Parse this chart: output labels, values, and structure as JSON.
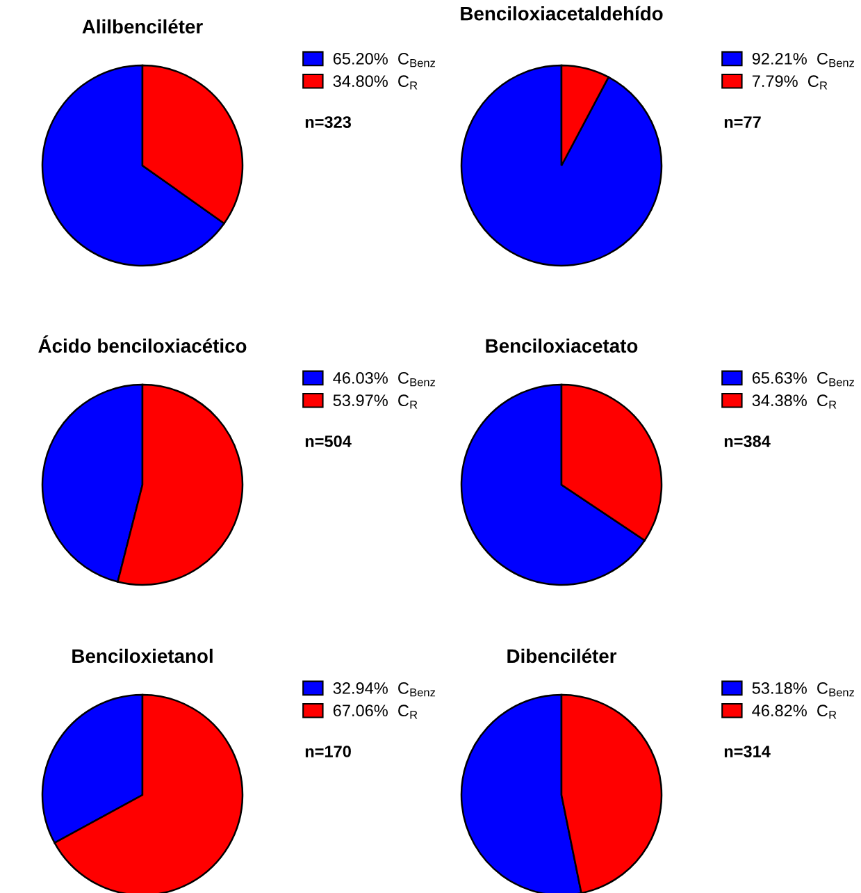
{
  "chart_data": [
    {
      "type": "pie",
      "title": "Alilbenciléter",
      "categories": [
        "C$_{Benz}$",
        "C$_{R}$"
      ],
      "values": [
        65.2,
        34.8
      ],
      "value_labels": [
        "65.20%",
        "34.80%"
      ],
      "colors": [
        "#0000ff",
        "#ff0000"
      ],
      "legend": "right",
      "annotations": [
        "n=323"
      ]
    },
    {
      "type": "pie",
      "title": "Benciloxiacetaldehído",
      "categories": [
        "C$_{Benz}$",
        "C$_{R}$"
      ],
      "values": [
        92.21,
        7.79
      ],
      "value_labels": [
        "92.21%",
        "7.79%"
      ],
      "colors": [
        "#0000ff",
        "#ff0000"
      ],
      "legend": "right",
      "annotations": [
        "n=77"
      ]
    },
    {
      "type": "pie",
      "title": "Ácido benciloxiacético",
      "categories": [
        "C$_{Benz}$",
        "C$_{R}$"
      ],
      "values": [
        46.03,
        53.97
      ],
      "value_labels": [
        "46.03%",
        "53.97%"
      ],
      "colors": [
        "#0000ff",
        "#ff0000"
      ],
      "legend": "right",
      "annotations": [
        "n=504"
      ]
    },
    {
      "type": "pie",
      "title": "Benciloxiacetato",
      "categories": [
        "C$_{Benz}$",
        "C$_{R}$"
      ],
      "values": [
        65.63,
        34.38
      ],
      "value_labels": [
        "65.63%",
        "34.38%"
      ],
      "colors": [
        "#0000ff",
        "#ff0000"
      ],
      "legend": "right",
      "annotations": [
        "n=384"
      ]
    },
    {
      "type": "pie",
      "title": "Benciloxietanol",
      "categories": [
        "C$_{Benz}$",
        "C$_{R}$"
      ],
      "values": [
        32.94,
        67.06
      ],
      "value_labels": [
        "32.94%",
        "67.06%"
      ],
      "colors": [
        "#0000ff",
        "#ff0000"
      ],
      "legend": "right",
      "annotations": [
        "n=170"
      ]
    },
    {
      "type": "pie",
      "title": "Dibenciléter",
      "categories": [
        "C$_{Benz}$",
        "C$_{R}$"
      ],
      "values": [
        53.18,
        46.82
      ],
      "value_labels": [
        "53.18%",
        "46.82%"
      ],
      "colors": [
        "#0000ff",
        "#ff0000"
      ],
      "legend": "right",
      "annotations": [
        "n=314"
      ]
    }
  ]
}
